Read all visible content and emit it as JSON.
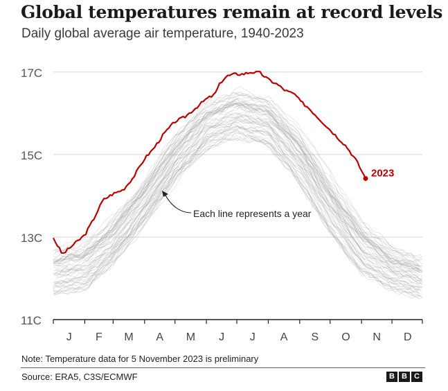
{
  "header": {
    "title": "Global temperatures remain at record levels",
    "subtitle": "Daily global average air temperature, 1940-2023"
  },
  "chart_data": {
    "type": "line",
    "title": "Global temperatures remain at record levels",
    "subtitle": "Daily global average air temperature, 1940-2023",
    "xlabel": "",
    "ylabel": "",
    "x_tick_labels": [
      "J",
      "F",
      "M",
      "A",
      "M",
      "J",
      "J",
      "A",
      "S",
      "O",
      "N",
      "D"
    ],
    "y_ticks": [
      11,
      13,
      15,
      17
    ],
    "y_tick_labels": [
      "11C",
      "13C",
      "15C",
      "17C"
    ],
    "ylim": [
      11,
      17.2
    ],
    "xlim": [
      1,
      365
    ],
    "grid": true,
    "annotation": "Each line represents a year",
    "background_series": {
      "description_years": "1940-2022",
      "color": "#9a9a9a",
      "x": [
        1,
        32,
        60,
        91,
        121,
        152,
        182,
        213,
        244,
        274,
        305,
        335,
        365
      ],
      "mean_values": [
        12.1,
        12.2,
        12.9,
        13.9,
        14.9,
        15.6,
        15.9,
        15.7,
        14.9,
        13.8,
        12.8,
        12.2,
        11.9
      ],
      "band_low": [
        11.6,
        11.7,
        12.3,
        13.3,
        14.3,
        15.1,
        15.4,
        15.2,
        14.3,
        13.1,
        12.1,
        11.7,
        11.5
      ],
      "band_high": [
        12.7,
        12.9,
        13.5,
        14.4,
        15.5,
        16.3,
        16.6,
        16.4,
        15.6,
        14.5,
        13.4,
        12.8,
        12.5
      ]
    },
    "series": [
      {
        "name": "2023",
        "color": "#b80000",
        "x": [
          1,
          10,
          20,
          32,
          40,
          50,
          60,
          70,
          80,
          91,
          100,
          110,
          121,
          130,
          140,
          152,
          160,
          166,
          172,
          180,
          188,
          196,
          205,
          213,
          222,
          230,
          240,
          244,
          252,
          260,
          268,
          274,
          280,
          290,
          300,
          309
        ],
        "values": [
          12.98,
          12.58,
          12.8,
          13.05,
          13.4,
          13.9,
          14.05,
          14.15,
          14.45,
          14.9,
          15.15,
          15.5,
          15.8,
          15.9,
          16.1,
          16.35,
          16.45,
          16.75,
          16.9,
          16.95,
          16.95,
          17.0,
          16.98,
          16.82,
          16.7,
          16.55,
          16.45,
          16.3,
          16.15,
          15.95,
          15.75,
          15.6,
          15.45,
          15.2,
          14.85,
          14.42
        ]
      }
    ],
    "last_point_label": "2023"
  },
  "footer": {
    "note": "Note: Temperature data for 5 November 2023 is preliminary",
    "source": "Source: ERA5, C3S/ECMWF",
    "logo_letters": [
      "B",
      "B",
      "C"
    ]
  }
}
